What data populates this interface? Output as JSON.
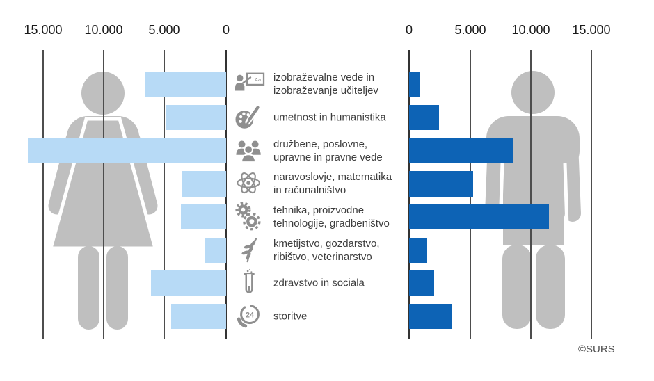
{
  "source_credit": "©SURS",
  "chart_data": {
    "type": "bar",
    "variant": "back-to-back horizontal pyramid (population-style)",
    "title": "",
    "categories": [
      {
        "icon": "teacher-board-icon",
        "label": "izobraževalne vede in\nizobraževanje učiteljev"
      },
      {
        "icon": "palette-icon",
        "label": "umetnost in humanistika"
      },
      {
        "icon": "people-group-icon",
        "label": "družbene, poslovne,\nupravne in pravne vede"
      },
      {
        "icon": "atom-icon",
        "label": "naravoslovje, matematika\nin računalništvo"
      },
      {
        "icon": "gears-icon",
        "label": "tehnika, proizvodne\ntehnologije, gradbeništvo"
      },
      {
        "icon": "wheat-icon",
        "label": "kmetijstvo, gozdarstvo,\nribištvo, veterinarstvo"
      },
      {
        "icon": "test-tube-icon",
        "label": "zdravstvo in sociala"
      },
      {
        "icon": "phone-24-icon",
        "label": "storitve"
      }
    ],
    "series": [
      {
        "name": "women",
        "side": "left",
        "color": "#b7daf6",
        "values": [
          6650,
          4950,
          16300,
          3600,
          3700,
          1800,
          6200,
          4500
        ]
      },
      {
        "name": "men",
        "side": "right",
        "color": "#0d63b5",
        "values": [
          900,
          2450,
          8500,
          5250,
          11500,
          1500,
          2050,
          3550
        ]
      }
    ],
    "axes": {
      "left_ticks": [
        "15.000",
        "10.000",
        "5.000",
        "0"
      ],
      "right_ticks": [
        "0",
        "5.000",
        "10.000",
        "15.000"
      ],
      "tick_values": [
        0,
        5000,
        10000,
        15000
      ],
      "max": 15000,
      "grid": true
    },
    "silhouettes": {
      "left": "woman",
      "right": "man"
    },
    "colors": {
      "women_bar": "#b7daf6",
      "men_bar": "#0d63b5",
      "silhouette": "#bfbfbf",
      "gridline": "#4d4d4d",
      "icon": "#8f8f8f",
      "label_text": "#3d3d3d"
    }
  }
}
